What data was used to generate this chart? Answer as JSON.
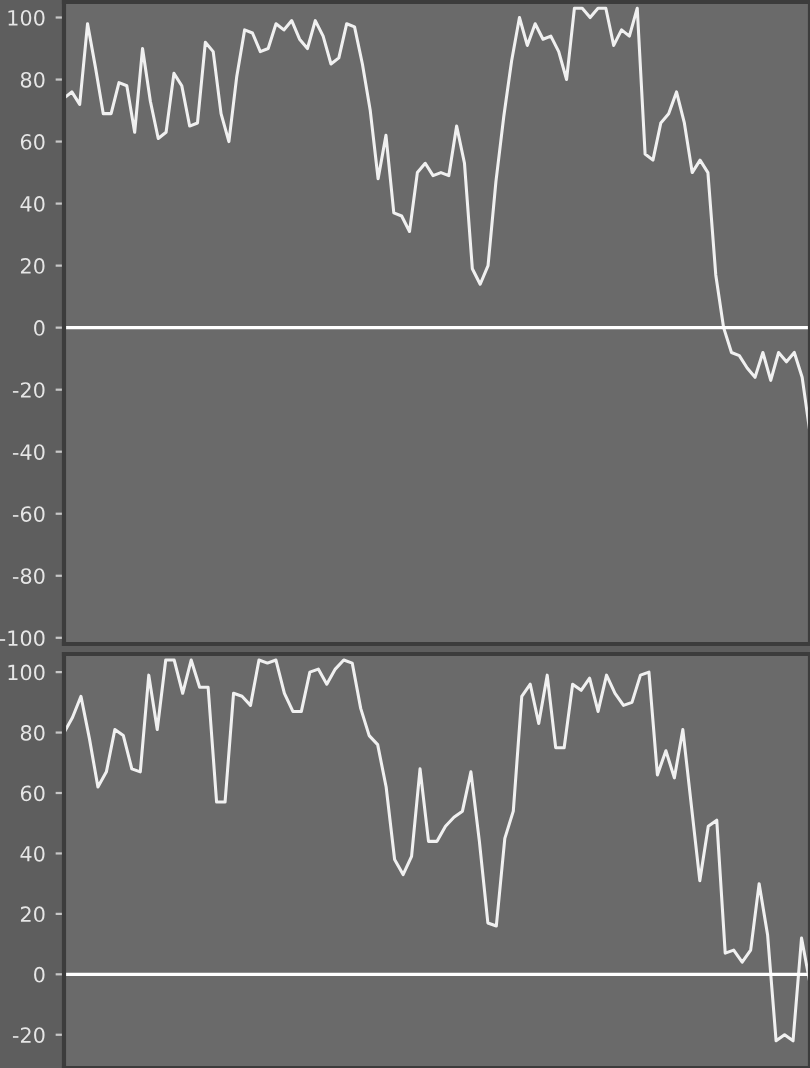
{
  "chart_data": [
    {
      "type": "line",
      "ylim": [
        -102,
        105
      ],
      "yticks": [
        -100,
        -80,
        -60,
        -40,
        -20,
        0,
        20,
        40,
        60,
        80,
        100
      ],
      "tick_labels": "y",
      "legend": false,
      "ref_lines": [
        {
          "axis": "y",
          "value": 0,
          "color": "#ffffff"
        }
      ],
      "categories": [
        null,
        null,
        null,
        null,
        null,
        null,
        null,
        null,
        null,
        null,
        null,
        null,
        null,
        null,
        null,
        null,
        null,
        null,
        null,
        null,
        null,
        null,
        null,
        null,
        null,
        null,
        null,
        null,
        null,
        null,
        null,
        null,
        null,
        null,
        null,
        null,
        null,
        null,
        null,
        null,
        null,
        null,
        null,
        null,
        null,
        null,
        null,
        null,
        null,
        null,
        null,
        null,
        null,
        null,
        null,
        null,
        null,
        null,
        null,
        null,
        null,
        null,
        null,
        null,
        null,
        null,
        null,
        null,
        null,
        null,
        null,
        null,
        null,
        null,
        null,
        null,
        null,
        null,
        null,
        null,
        null,
        null,
        null,
        null,
        null,
        null,
        null,
        null,
        null,
        null,
        null,
        null,
        null,
        null,
        null,
        null
      ],
      "series": [
        {
          "color": "#f0f0f0",
          "values": [
            74,
            76,
            72,
            98,
            84,
            69,
            69,
            79,
            78,
            63,
            90,
            73,
            61,
            63,
            82,
            78,
            65,
            66,
            92,
            89,
            69,
            60,
            81,
            96,
            95,
            89,
            90,
            98,
            96,
            99,
            93,
            90,
            99,
            94,
            85,
            87,
            98,
            97,
            85,
            70,
            48,
            62,
            37,
            36,
            31,
            50,
            53,
            49,
            50,
            49,
            65,
            53,
            19,
            14,
            20,
            47,
            68,
            86,
            100,
            91,
            98,
            93,
            94,
            89,
            80,
            103,
            103,
            100,
            103,
            103,
            91,
            96,
            94,
            103,
            56,
            54,
            66,
            69,
            76,
            66,
            50,
            54,
            50,
            17,
            0,
            -8,
            -9,
            -13,
            -16,
            -8,
            -17,
            -8,
            -11,
            -8,
            -16,
            -34
          ]
        }
      ]
    },
    {
      "type": "line",
      "ylim": [
        -31,
        106
      ],
      "yticks": [
        -20,
        0,
        20,
        40,
        60,
        80,
        100
      ],
      "tick_labels": "y",
      "legend": false,
      "ref_lines": [
        {
          "axis": "y",
          "value": 0,
          "color": "#ffffff"
        }
      ],
      "categories": [
        null,
        null,
        null,
        null,
        null,
        null,
        null,
        null,
        null,
        null,
        null,
        null,
        null,
        null,
        null,
        null,
        null,
        null,
        null,
        null,
        null,
        null,
        null,
        null,
        null,
        null,
        null,
        null,
        null,
        null,
        null,
        null,
        null,
        null,
        null,
        null,
        null,
        null,
        null,
        null,
        null,
        null,
        null,
        null,
        null,
        null,
        null,
        null,
        null,
        null,
        null,
        null,
        null,
        null,
        null,
        null,
        null,
        null,
        null,
        null,
        null,
        null,
        null,
        null,
        null,
        null,
        null,
        null,
        null,
        null,
        null,
        null,
        null,
        null,
        null,
        null,
        null,
        null,
        null,
        null,
        null,
        null,
        null,
        null,
        null,
        null,
        null,
        null,
        null
      ],
      "series": [
        {
          "color": "#f0f0f0",
          "values": [
            80,
            85,
            92,
            78,
            62,
            67,
            81,
            79,
            68,
            67,
            99,
            81,
            104,
            104,
            93,
            104,
            95,
            95,
            57,
            57,
            93,
            92,
            89,
            104,
            103,
            104,
            93,
            87,
            87,
            100,
            101,
            96,
            101,
            104,
            103,
            88,
            79,
            76,
            62,
            38,
            33,
            39,
            68,
            44,
            44,
            49,
            52,
            54,
            67,
            44,
            17,
            16,
            45,
            54,
            92,
            96,
            83,
            99,
            75,
            75,
            96,
            94,
            98,
            87,
            99,
            93,
            89,
            90,
            99,
            100,
            66,
            74,
            65,
            81,
            56,
            31,
            49,
            51,
            7,
            8,
            4,
            8,
            30,
            13,
            -22,
            -20,
            -22,
            12,
            -3
          ]
        }
      ]
    }
  ]
}
